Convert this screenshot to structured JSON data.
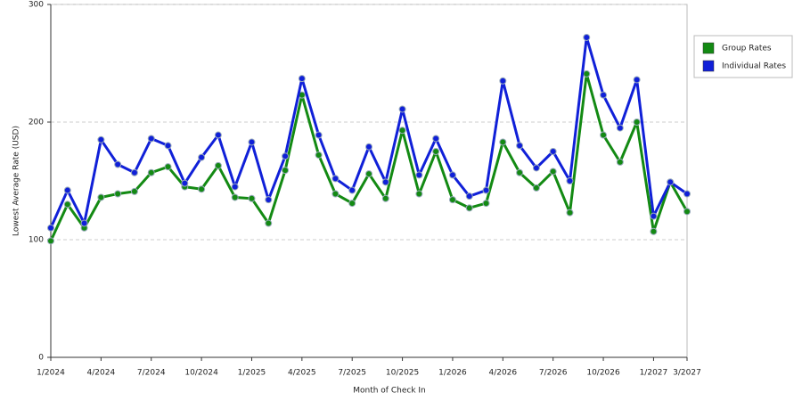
{
  "chart_data": {
    "type": "line",
    "x_label": "Month of Check In",
    "y_label": "Lowest Average Rate (USD)",
    "categories": [
      "1/2024",
      null,
      null,
      "4/2024",
      null,
      null,
      "7/2024",
      null,
      null,
      "10/2024",
      null,
      null,
      "1/2025",
      null,
      null,
      "4/2025",
      null,
      null,
      "7/2025",
      null,
      null,
      "10/2025",
      null,
      null,
      "1/2026",
      null,
      null,
      "4/2026",
      null,
      null,
      "7/2026",
      null,
      null,
      "10/2026",
      null,
      null,
      "1/2027",
      null,
      "3/2027"
    ],
    "series": [
      {
        "name": "Group Rates",
        "color": "#138a13",
        "values": [
          99,
          130,
          110,
          136,
          139,
          141,
          157,
          162,
          145,
          143,
          163,
          136,
          135,
          114,
          159,
          223,
          172,
          139,
          131,
          156,
          135,
          193,
          139,
          175,
          134,
          127,
          131,
          183,
          157,
          144,
          158,
          123,
          241,
          189,
          166,
          200,
          107,
          149,
          124
        ]
      },
      {
        "name": "Individual Rates",
        "color": "#1020d8",
        "values": [
          110,
          142,
          114,
          185,
          164,
          157,
          186,
          180,
          148,
          170,
          189,
          145,
          183,
          134,
          171,
          237,
          189,
          152,
          142,
          179,
          149,
          211,
          155,
          186,
          155,
          137,
          142,
          235,
          180,
          161,
          175,
          150,
          272,
          223,
          195,
          236,
          120,
          149,
          139
        ]
      }
    ],
    "ylim": [
      0,
      300
    ],
    "yticks": [
      0,
      100,
      200,
      300
    ],
    "grid": true,
    "legend": "right"
  }
}
